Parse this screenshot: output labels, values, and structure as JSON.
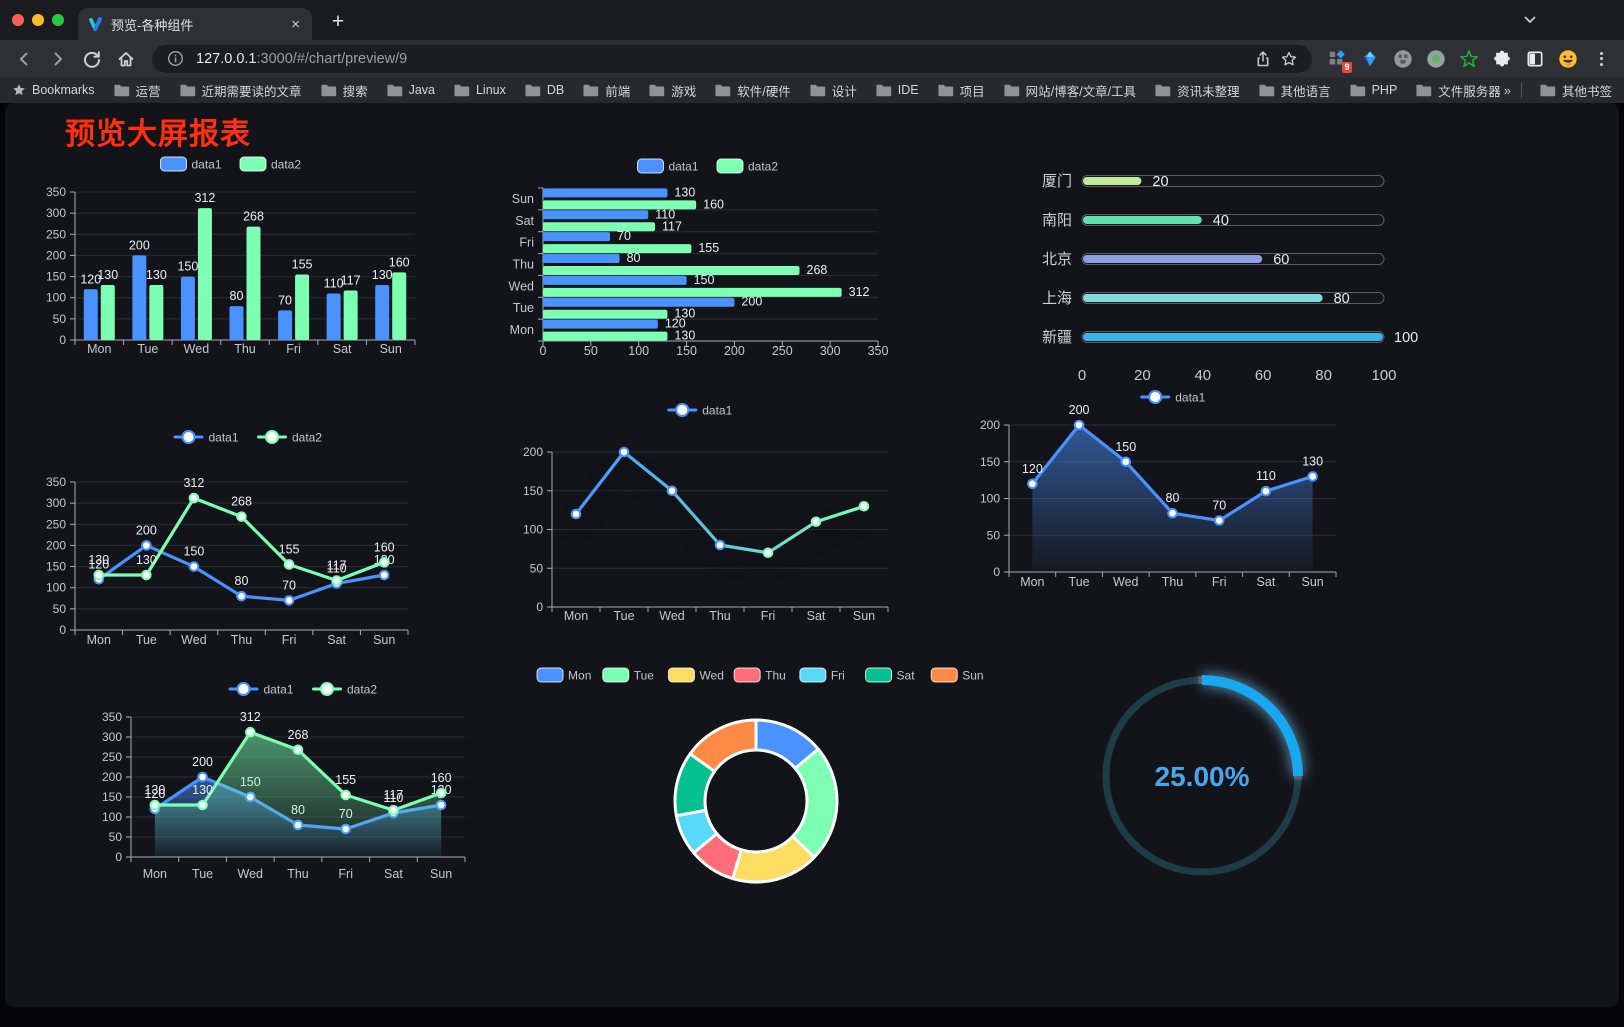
{
  "browser": {
    "tab": {
      "title": "预览-各种组件",
      "favicon": "v-logo",
      "close_label": "×"
    },
    "new_tab_button": "+",
    "url": {
      "host": "127.0.0.1",
      "rest": ":3000/#/chart/preview/9"
    },
    "extensions_badge": "9",
    "bookmarks": {
      "label": "Bookmarks",
      "folders": [
        "运营",
        "近期需要读的文章",
        "搜索",
        "Java",
        "Linux",
        "DB",
        "前端",
        "游戏",
        "软件/硬件",
        "设计",
        "IDE",
        "项目",
        "网站/博客/文章/工具",
        "资讯未整理",
        "其他语言",
        "PHP",
        "文件服务器"
      ],
      "overflow": "»",
      "other": "其他书签"
    }
  },
  "page": {
    "title": "预览大屏报表",
    "title_color": "#ff2f10",
    "background": "#131419"
  },
  "chart_data": [
    {
      "id": "bar-grouped",
      "type": "bar",
      "categories": [
        "Mon",
        "Tue",
        "Wed",
        "Thu",
        "Fri",
        "Sat",
        "Sun"
      ],
      "series": [
        {
          "name": "data1",
          "color": "#4992ff",
          "values": [
            120,
            200,
            150,
            80,
            70,
            110,
            130
          ]
        },
        {
          "name": "data2",
          "color": "#7cffb2",
          "values": [
            130,
            130,
            312,
            268,
            155,
            117,
            160
          ]
        }
      ],
      "ylim": [
        0,
        350
      ],
      "y_ticks": [
        0,
        50,
        100,
        150,
        200,
        250,
        300,
        350
      ],
      "legend_position": "top",
      "grid": true
    },
    {
      "id": "bar-horizontal",
      "type": "hbar",
      "categories": [
        "Mon",
        "Tue",
        "Wed",
        "Thu",
        "Fri",
        "Sat",
        "Sun"
      ],
      "series": [
        {
          "name": "data1",
          "color": "#4992ff",
          "values": [
            120,
            200,
            150,
            80,
            70,
            110,
            130
          ]
        },
        {
          "name": "data2",
          "color": "#7cffb2",
          "values": [
            130,
            130,
            312,
            268,
            155,
            117,
            160
          ]
        }
      ],
      "xlim": [
        0,
        350
      ],
      "x_ticks": [
        0,
        50,
        100,
        150,
        200,
        250,
        300,
        350
      ],
      "legend_position": "top",
      "grid": true
    },
    {
      "id": "progress-list",
      "type": "progress",
      "max": 100,
      "axis_ticks": [
        0,
        20,
        40,
        60,
        80,
        100
      ],
      "items": [
        {
          "label": "厦门",
          "value": 20,
          "color": "#c3e89f"
        },
        {
          "label": "南阳",
          "value": 40,
          "color": "#5fe3ad"
        },
        {
          "label": "北京",
          "value": 60,
          "color": "#8f9fe3"
        },
        {
          "label": "上海",
          "value": 80,
          "color": "#7fdcdc"
        },
        {
          "label": "新疆",
          "value": 100,
          "color": "#3bb3e6"
        }
      ]
    },
    {
      "id": "line-two-series",
      "type": "line",
      "categories": [
        "Mon",
        "Tue",
        "Wed",
        "Thu",
        "Fri",
        "Sat",
        "Sun"
      ],
      "series": [
        {
          "name": "data1",
          "color": "#4992ff",
          "values": [
            120,
            200,
            150,
            80,
            70,
            110,
            130
          ]
        },
        {
          "name": "data2",
          "color": "#7cffb2",
          "values": [
            130,
            130,
            312,
            268,
            155,
            117,
            160
          ]
        }
      ],
      "ylim": [
        0,
        350
      ],
      "y_ticks": [
        0,
        50,
        100,
        150,
        200,
        250,
        300,
        350
      ],
      "labels": true,
      "legend_position": "top"
    },
    {
      "id": "line-gradient",
      "type": "line",
      "categories": [
        "Mon",
        "Tue",
        "Wed",
        "Thu",
        "Fri",
        "Sat",
        "Sun"
      ],
      "series": [
        {
          "name": "data1",
          "color": "#4992ff",
          "gradient": [
            "#4992ff",
            "#7cffb2"
          ],
          "values": [
            120,
            200,
            150,
            80,
            70,
            110,
            130
          ]
        }
      ],
      "ylim": [
        0,
        200
      ],
      "y_ticks": [
        0,
        50,
        100,
        150,
        200
      ],
      "labels": false,
      "legend_position": "top"
    },
    {
      "id": "area-single",
      "type": "area",
      "categories": [
        "Mon",
        "Tue",
        "Wed",
        "Thu",
        "Fri",
        "Sat",
        "Sun"
      ],
      "series": [
        {
          "name": "data1",
          "color": "#4992ff",
          "fill": "#4992ff",
          "values": [
            120,
            200,
            150,
            80,
            70,
            110,
            130
          ]
        }
      ],
      "ylim": [
        0,
        200
      ],
      "y_ticks": [
        0,
        50,
        100,
        150,
        200
      ],
      "labels": true,
      "legend_position": "top"
    },
    {
      "id": "area-two-series",
      "type": "area",
      "categories": [
        "Mon",
        "Tue",
        "Wed",
        "Thu",
        "Fri",
        "Sat",
        "Sun"
      ],
      "series": [
        {
          "name": "data1",
          "color": "#4992ff",
          "fill": "#4992ff",
          "values": [
            120,
            200,
            150,
            80,
            70,
            110,
            130
          ]
        },
        {
          "name": "data2",
          "color": "#7cffb2",
          "fill": "#7cffb2",
          "values": [
            130,
            130,
            312,
            268,
            155,
            117,
            160
          ]
        }
      ],
      "ylim": [
        0,
        350
      ],
      "y_ticks": [
        0,
        50,
        100,
        150,
        200,
        250,
        300,
        350
      ],
      "labels": true,
      "legend_position": "top"
    },
    {
      "id": "donut",
      "type": "pie",
      "categories": [
        "Mon",
        "Tue",
        "Wed",
        "Thu",
        "Fri",
        "Sat",
        "Sun"
      ],
      "values": [
        120,
        200,
        150,
        80,
        70,
        110,
        130
      ],
      "colors": [
        "#4992ff",
        "#7cffb2",
        "#fddd60",
        "#ff6e76",
        "#58d9f9",
        "#05c091",
        "#ff8a45"
      ],
      "legend_position": "top",
      "inner_radius_ratio": 0.63,
      "border_color": "#ffffff"
    },
    {
      "id": "gauge",
      "type": "gauge",
      "value": 25,
      "display": "25.00%",
      "progress_color": "#18a8f0",
      "track_color": "#1d3c46",
      "text_color": "#4aa6ea"
    }
  ]
}
